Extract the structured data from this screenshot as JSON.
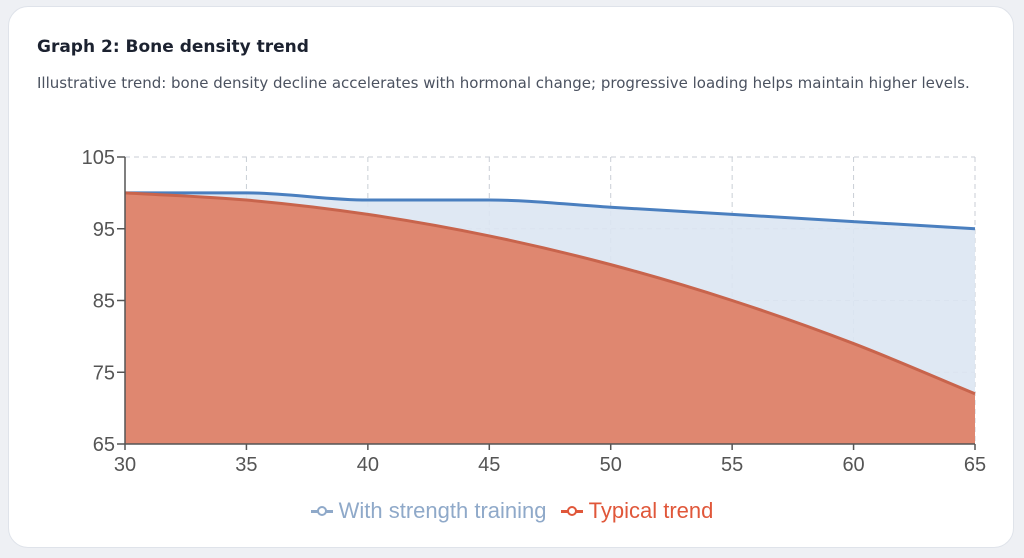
{
  "card": {
    "title": "Graph 2: Bone density trend",
    "subtitle": "Illustrative trend: bone density decline accelerates with hormonal change; progressive loading helps maintain higher levels."
  },
  "chart_data": {
    "type": "area",
    "x": [
      30,
      35,
      40,
      45,
      50,
      55,
      60,
      65
    ],
    "xlim": [
      30,
      65
    ],
    "ylim": [
      65,
      105
    ],
    "xticks": [
      "30",
      "35",
      "40",
      "45",
      "50",
      "55",
      "60",
      "65"
    ],
    "yticks": [
      "65",
      "75",
      "85",
      "95",
      "105"
    ],
    "grid": true,
    "legend_position": "bottom",
    "series": [
      {
        "name": "With strength training",
        "values": [
          100,
          100,
          99,
          99,
          98,
          97,
          96,
          95
        ],
        "color": "#4a7fbf",
        "fill": "#dbe5f2",
        "legend_color": "#8fa9c9"
      },
      {
        "name": "Typical trend",
        "values": [
          100,
          99,
          97,
          94,
          90,
          85,
          79,
          72
        ],
        "color": "#c8644c",
        "fill": "#df8770",
        "legend_color": "#e0573a"
      }
    ]
  }
}
